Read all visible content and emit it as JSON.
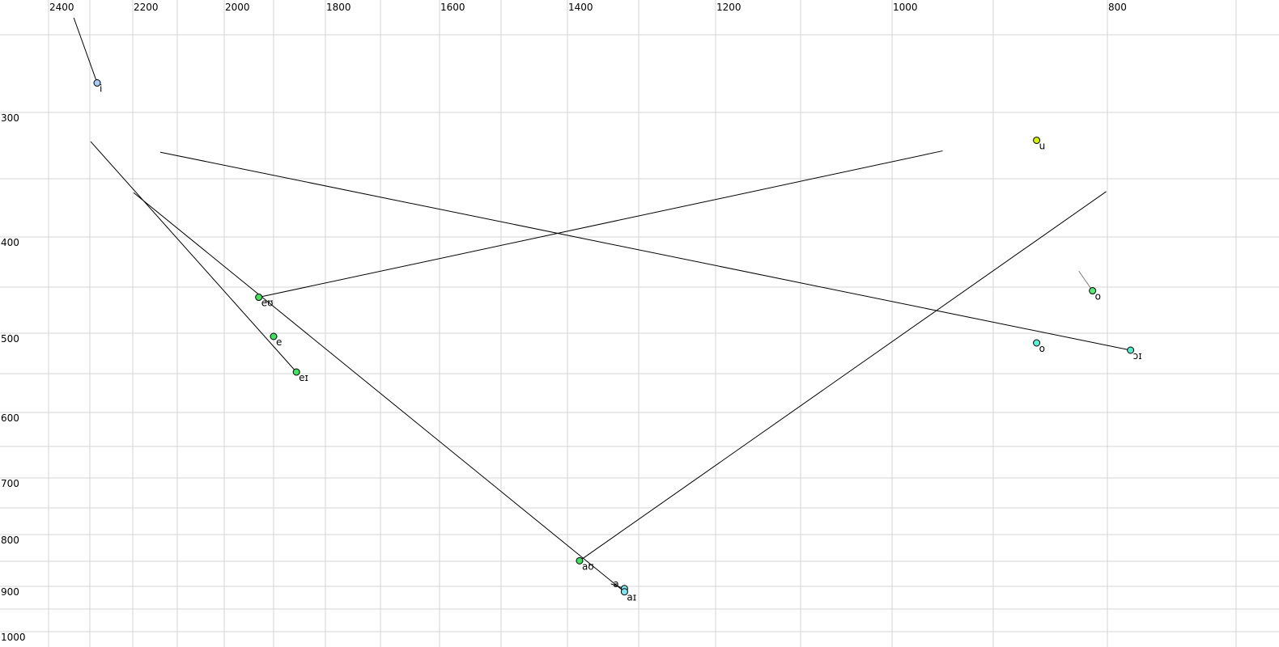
{
  "chart_data": {
    "type": "scatter",
    "title": "",
    "xlabel": "",
    "ylabel": "",
    "x_axis": {
      "position": "top",
      "reversed": true,
      "scale": "nonlinear",
      "range": [
        2400,
        700
      ],
      "tick_labels": [
        "2400",
        "2200",
        "2000",
        "1800",
        "1600",
        "1400",
        "1200",
        "1000",
        "800"
      ]
    },
    "y_axis": {
      "position": "left",
      "reversed": true,
      "scale": "nonlinear",
      "range": [
        250,
        1000
      ],
      "tick_labels": [
        "300",
        "400",
        "500",
        "600",
        "700",
        "800",
        "900",
        "1000"
      ]
    },
    "grid": true,
    "points": [
      {
        "label": "i",
        "f2": 2283,
        "f1": 281,
        "color": "#a8ccf4",
        "label_color": "#000000",
        "track_to": {
          "f2": 2339,
          "f1": 239
        }
      },
      {
        "label": "u",
        "f2": 862,
        "f1": 321,
        "color": "#d4f000",
        "label_color": "#000000",
        "track_to": null
      },
      {
        "label": "eʊ",
        "f2": 1930,
        "f1": 461,
        "color": "#40e060",
        "label_color": "#000000",
        "track_to": {
          "f2": 950,
          "f1": 329
        }
      },
      {
        "label": "e",
        "f2": 1900,
        "f1": 504,
        "color": "#40e060",
        "label_color": "#000000",
        "track_to": null
      },
      {
        "label": "eɪ",
        "f2": 1856,
        "f1": 548,
        "color": "#40e060",
        "label_color": "#000000",
        "track_to": {
          "f2": 2298,
          "f1": 322
        }
      },
      {
        "label": "aʊ",
        "f2": 1383,
        "f1": 849,
        "color": "#40e060",
        "label_color": "#000000",
        "track_to": {
          "f2": 801,
          "f1": 361
        }
      },
      {
        "label": "a",
        "f2": 1320,
        "f1": 905,
        "color": "#80e4f0",
        "label_color": "#000000",
        "track_to": {
          "f2": 1339,
          "f1": 895
        }
      },
      {
        "label": "aɪ",
        "f2": 1320,
        "f1": 912,
        "color": "#80e4f0",
        "label_color": "#000000",
        "track_to": {
          "f2": 2198,
          "f1": 362
        }
      },
      {
        "label": "o",
        "f2": 862,
        "f1": 512,
        "color": "#5af0d0",
        "label_color": "#000000",
        "track_to": null
      },
      {
        "label": "o",
        "f2": 813,
        "f1": 454,
        "color": "#58e878",
        "label_color": "#707080",
        "track_to": {
          "f2": 825,
          "f1": 434
        },
        "track_color": "#808080"
      },
      {
        "label": "ɔɪ",
        "f2": 782,
        "f1": 521,
        "color": "#5ae8c8",
        "label_color": "#000000",
        "track_to": {
          "f2": 2138,
          "f1": 330
        }
      }
    ]
  }
}
